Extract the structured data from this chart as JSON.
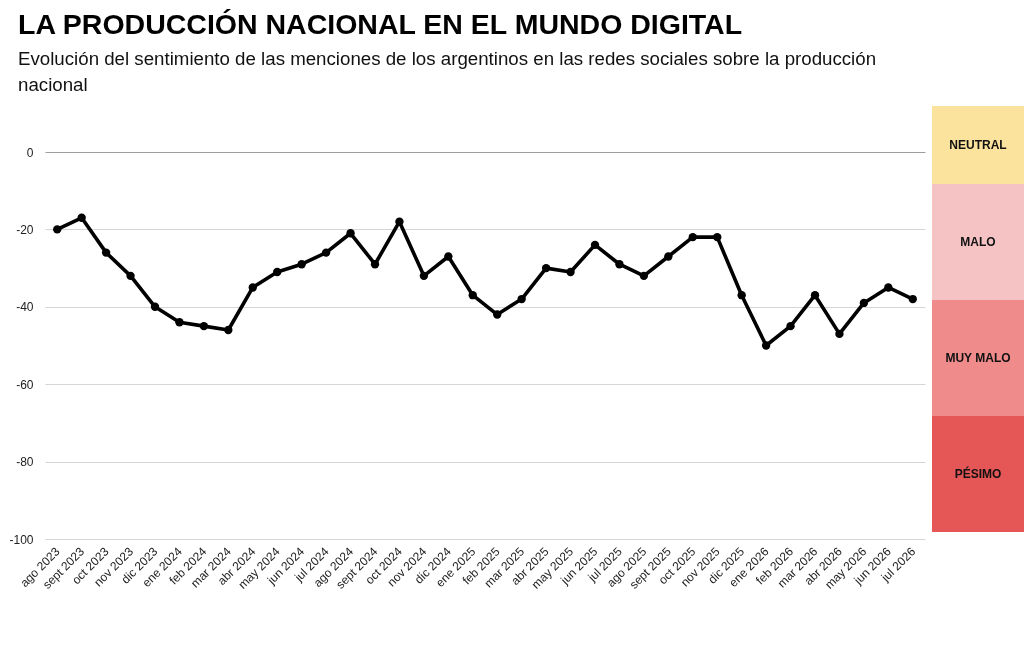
{
  "chart_data": [
    {
      "type": "line",
      "title": "LA PRODUCCIÓN NACIONAL EN EL MUNDO DIGITAL",
      "subtitle": "Evolución del sentimiento de las menciones de los argentinos en las redes sociales sobre la producción nacional",
      "categories": [
        "ago 2023",
        "sept 2023",
        "oct 2023",
        "nov 2023",
        "dic 2023",
        "ene 2024",
        "feb 2024",
        "mar 2024",
        "abr 2024",
        "may 2024",
        "jun 2024",
        "jul 2024",
        "ago 2024",
        "sept 2024",
        "oct 2024",
        "nov 2024",
        "dic 2024",
        "ene 2025",
        "feb 2025",
        "mar 2025",
        "abr 2025",
        "may 2025",
        "jun 2025",
        "jul 2025",
        "ago 2025",
        "sept 2025",
        "oct 2025",
        "nov 2025",
        "dic 2025",
        "ene 2026",
        "feb 2026",
        "mar 2026",
        "abr 2026",
        "may 2026",
        "jun 2026",
        "jul 2026"
      ],
      "values": [
        -20,
        -17,
        -26,
        -32,
        -40,
        -44,
        -45,
        -46,
        -35,
        -31,
        -29,
        -26,
        -21,
        -29,
        -18,
        -32,
        -27,
        -37,
        -42,
        -38,
        -30,
        -31,
        -24,
        -29,
        -32,
        -27,
        -22,
        -22,
        -37,
        -50,
        -45,
        -37,
        -47,
        -39,
        -35,
        -38
      ],
      "color": "#000000",
      "ylim": [
        -100,
        0
      ],
      "yticks": [
        -100,
        -80,
        -60,
        -40,
        -20,
        0
      ],
      "grid": "y",
      "marker": "circle",
      "line_style": "solid"
    },
    {
      "type": "other",
      "categories": [
        "NEUTRAL",
        "MALO",
        "MUY MALO",
        "PÉSIMO"
      ],
      "colors": [
        "#fbe29d",
        "#f5c3c3",
        "#ef8b8a",
        "#e55656"
      ]
    }
  ]
}
